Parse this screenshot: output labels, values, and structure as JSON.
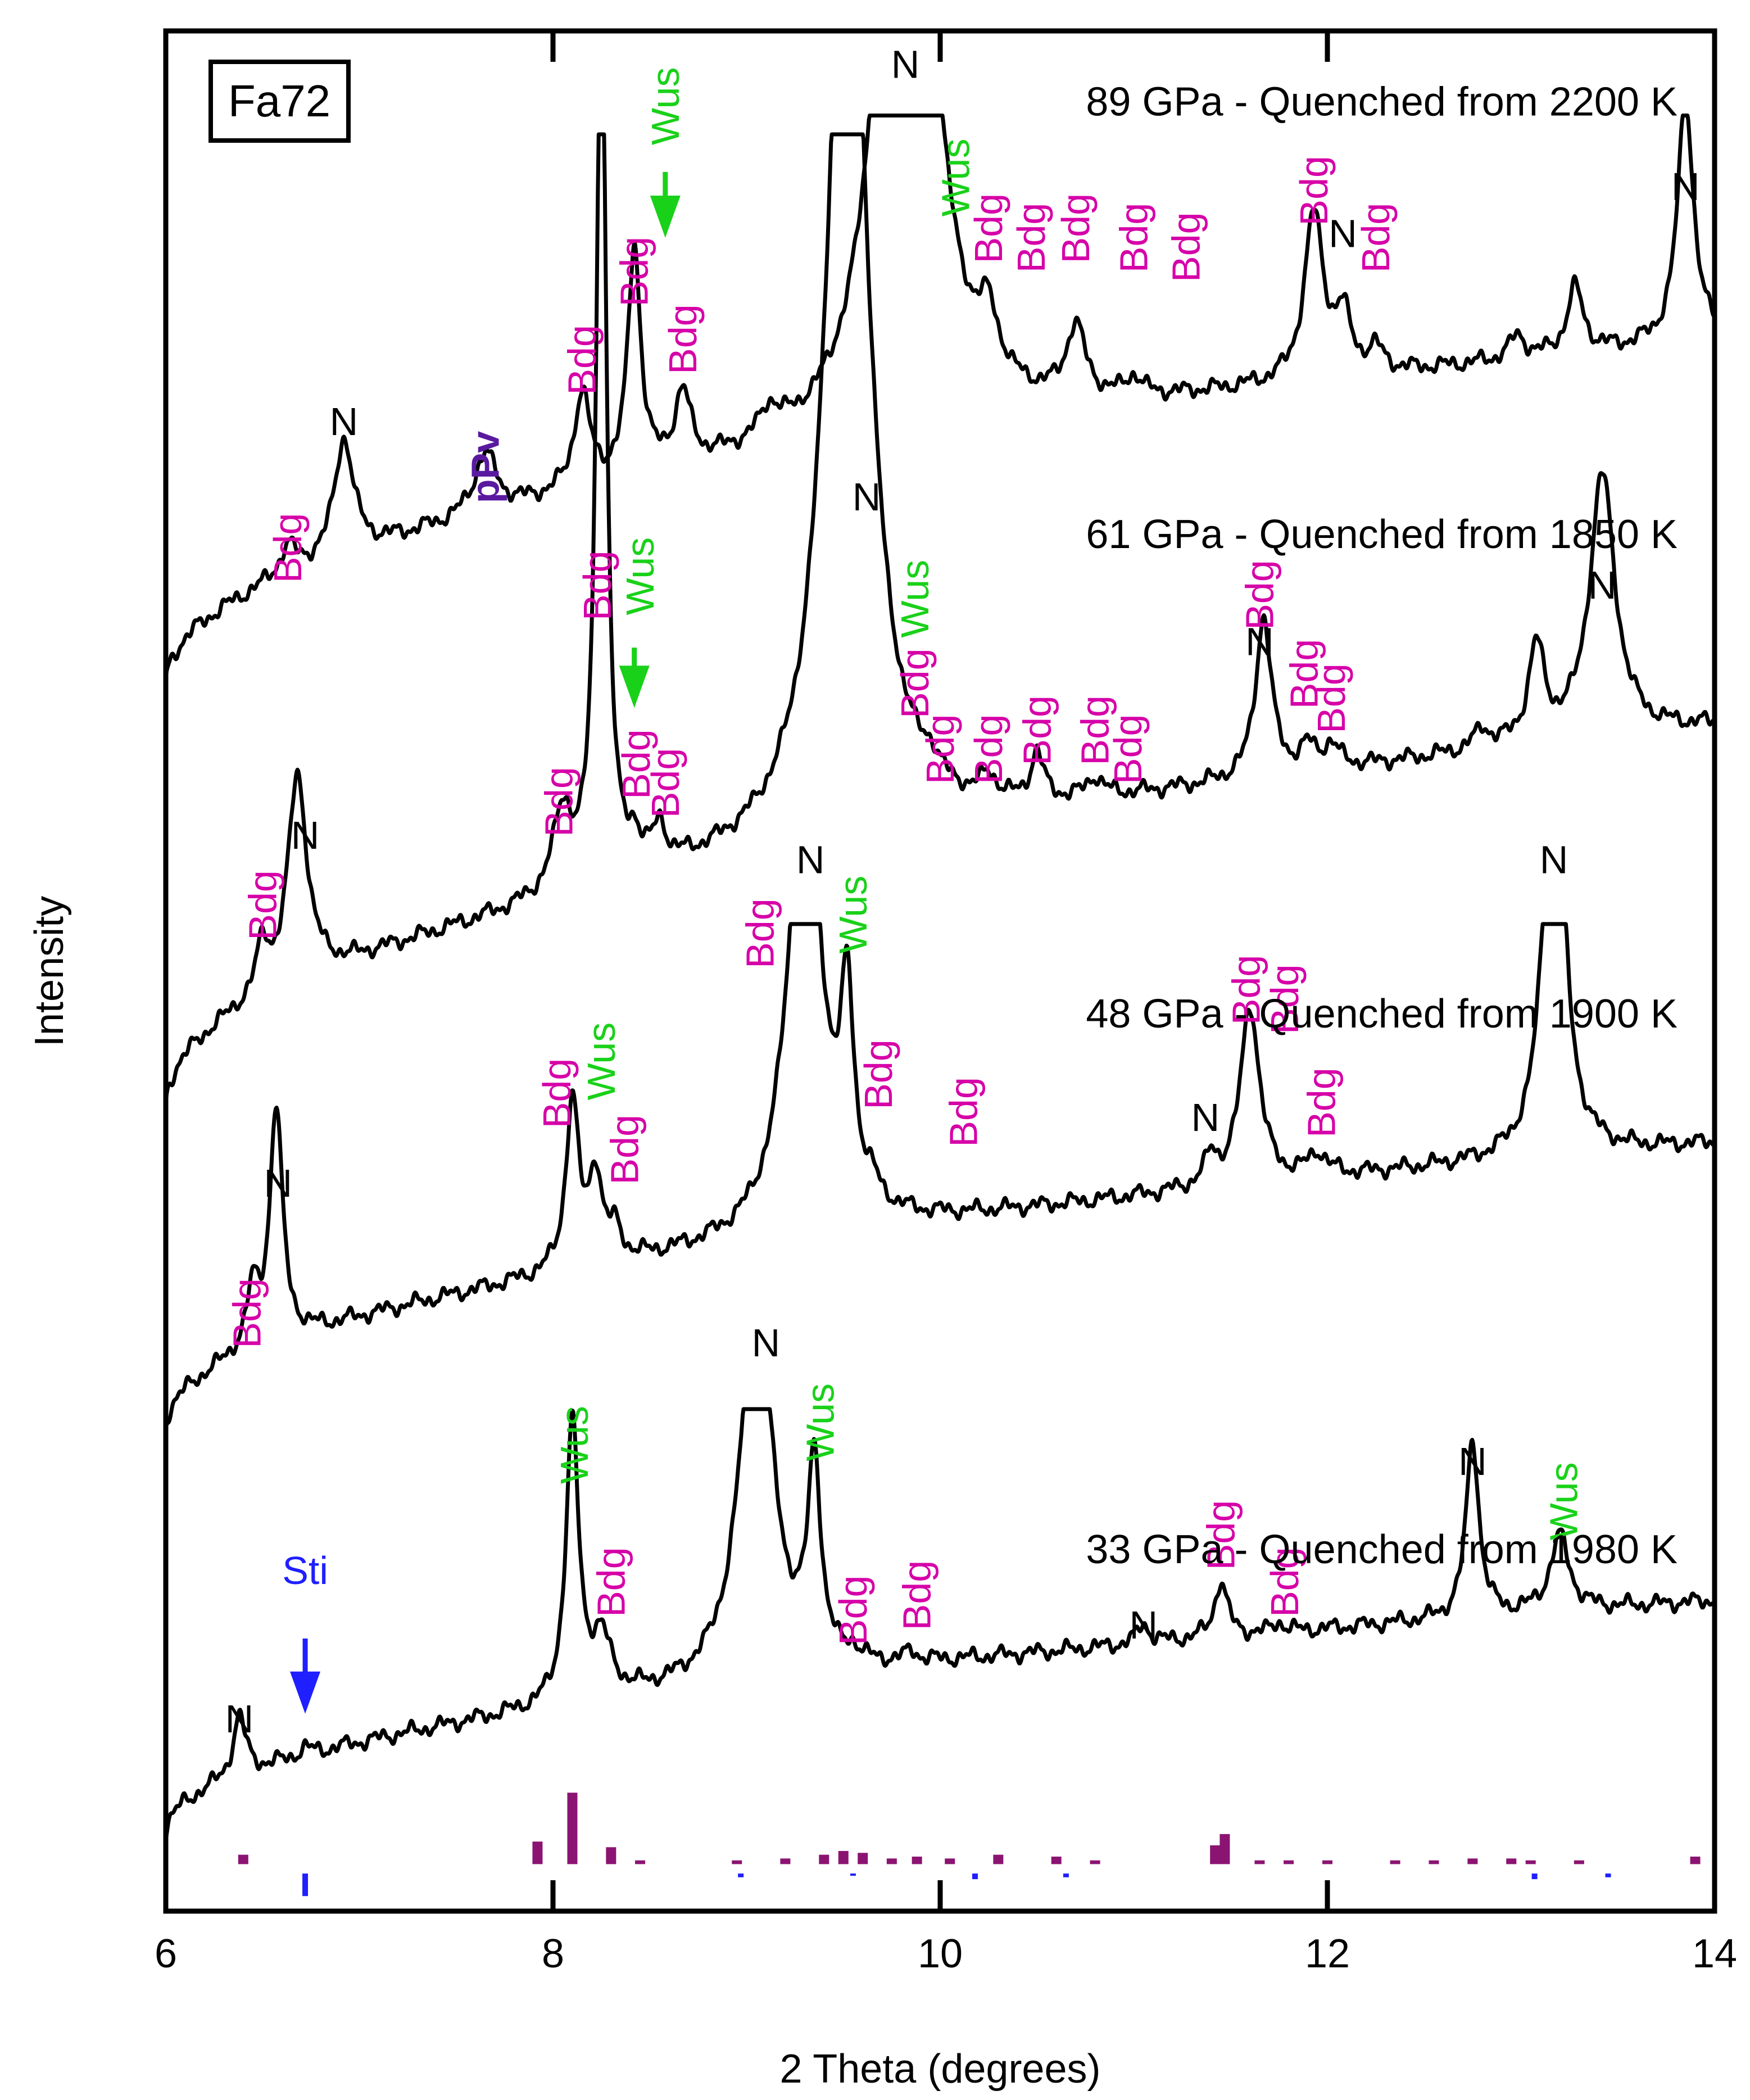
{
  "chart_data": {
    "type": "line",
    "sample_label": "Fa72",
    "xlabel": "2 Theta (degrees)",
    "ylabel": "Intensity",
    "xlim": [
      6,
      14
    ],
    "ylim": [
      0,
      10
    ],
    "xticks": [
      6,
      8,
      10,
      12,
      14
    ],
    "tick_labels": [
      "6",
      "8",
      "10",
      "12",
      "14"
    ],
    "colors": {
      "trace": "#000000",
      "Bdg": "#d600a8",
      "Wus": "#19d119",
      "Sti": "#1f1fff",
      "pPv": "#5a1aa0",
      "N": "#000000",
      "bdg_ref": "#8b1472",
      "sti_ref": "#1f1fff"
    },
    "series": [
      {
        "name": "89 GPa - Quenched from 2200 K",
        "label": "89 GPa - Quenched from 2200 K",
        "base_start": 6.5,
        "base_end": 8.35,
        "clip": 9.55,
        "peaks": [
          [
            6.63,
            0.15,
            0.05
          ],
          [
            6.92,
            0.62,
            0.06
          ],
          [
            7.65,
            0.32,
            0.07
          ],
          [
            8.15,
            0.5,
            0.05
          ],
          [
            8.42,
            1.22,
            0.04
          ],
          [
            8.67,
            0.38,
            0.05
          ],
          [
            9.12,
            0.15,
            0.06
          ],
          [
            9.82,
            6.0,
            0.12
          ],
          [
            10.25,
            0.3,
            0.06
          ],
          [
            10.7,
            0.38,
            0.06
          ],
          [
            11.0,
            0.1,
            0.05
          ],
          [
            11.93,
            0.88,
            0.06
          ],
          [
            12.08,
            0.3,
            0.05
          ],
          [
            12.25,
            0.12,
            0.05
          ],
          [
            12.98,
            0.12,
            0.05
          ],
          [
            13.28,
            0.35,
            0.05
          ],
          [
            13.85,
            1.3,
            0.05
          ]
        ],
        "annotations": [
          {
            "text": "Bdg",
            "x": 6.63,
            "y": 7.25,
            "phase": "Bdg",
            "rotate": true
          },
          {
            "text": "N",
            "x": 6.92,
            "y": 7.85,
            "phase": "N",
            "rotate": false
          },
          {
            "text": "pPv",
            "x": 7.65,
            "y": 7.68,
            "phase": "pPv",
            "rotate": true,
            "bold": true
          },
          {
            "text": "Bdg",
            "x": 8.15,
            "y": 8.25,
            "phase": "Bdg",
            "rotate": true
          },
          {
            "text": "Bdg",
            "x": 8.42,
            "y": 8.72,
            "phase": "Bdg",
            "rotate": true
          },
          {
            "text": "Wus",
            "x": 8.58,
            "y": 9.6,
            "phase": "Wus",
            "rotate": true
          },
          {
            "text": "Bdg",
            "x": 8.67,
            "y": 8.36,
            "phase": "Bdg",
            "rotate": true
          },
          {
            "text": "N",
            "x": 9.82,
            "y": 9.75,
            "phase": "N",
            "rotate": false
          },
          {
            "text": "Wus",
            "x": 10.08,
            "y": 9.22,
            "phase": "Wus",
            "rotate": true
          },
          {
            "text": "Bdg",
            "x": 10.25,
            "y": 8.95,
            "phase": "Bdg",
            "rotate": true
          },
          {
            "text": "Bdg",
            "x": 10.47,
            "y": 8.9,
            "phase": "Bdg",
            "rotate": true
          },
          {
            "text": "Bdg",
            "x": 10.7,
            "y": 8.95,
            "phase": "Bdg",
            "rotate": true
          },
          {
            "text": "Bdg",
            "x": 11.0,
            "y": 8.9,
            "phase": "Bdg",
            "rotate": true
          },
          {
            "text": "Bdg",
            "x": 11.27,
            "y": 8.85,
            "phase": "Bdg",
            "rotate": true
          },
          {
            "text": "Bdg",
            "x": 11.93,
            "y": 9.15,
            "phase": "Bdg",
            "rotate": true
          },
          {
            "text": "N",
            "x": 12.08,
            "y": 8.85,
            "phase": "N",
            "rotate": false
          },
          {
            "text": "Bdg",
            "x": 12.25,
            "y": 8.9,
            "phase": "Bdg",
            "rotate": true
          },
          {
            "text": "N",
            "x": 13.85,
            "y": 9.1,
            "phase": "N",
            "rotate": false
          }
        ],
        "arrows": [
          {
            "x": 8.58,
            "y_from": 9.25,
            "y_to": 8.9,
            "phase": "Wus"
          }
        ]
      },
      {
        "name": "61 GPa - Quenched from 1850 K",
        "label": "61 GPa - Quenched from 1850 K",
        "base_start": 4.25,
        "base_end": 6.3,
        "clip": 9.45,
        "peaks": [
          [
            6.5,
            0.25,
            0.04
          ],
          [
            6.68,
            1.1,
            0.06
          ],
          [
            8.05,
            0.42,
            0.06
          ],
          [
            8.25,
            5.0,
            0.03
          ],
          [
            8.42,
            0.15,
            0.04
          ],
          [
            8.55,
            0.2,
            0.04
          ],
          [
            9.52,
            5.6,
            0.12
          ],
          [
            9.95,
            0.1,
            0.05
          ],
          [
            10.25,
            0.12,
            0.05
          ],
          [
            10.5,
            0.25,
            0.04
          ],
          [
            10.8,
            0.1,
            0.05
          ],
          [
            11.67,
            0.85,
            0.05
          ],
          [
            11.9,
            0.12,
            0.05
          ],
          [
            12.02,
            0.12,
            0.05
          ],
          [
            12.8,
            0.1,
            0.05
          ],
          [
            13.08,
            0.5,
            0.05
          ],
          [
            13.42,
            1.4,
            0.08
          ]
        ],
        "annotations": [
          {
            "text": "Bdg",
            "x": 6.5,
            "y": 5.35,
            "phase": "Bdg",
            "rotate": true
          },
          {
            "text": "N",
            "x": 6.72,
            "y": 5.65,
            "phase": "N",
            "rotate": false
          },
          {
            "text": "Bdg",
            "x": 8.03,
            "y": 5.9,
            "phase": "Bdg",
            "rotate": true
          },
          {
            "text": "Bdg",
            "x": 8.23,
            "y": 7.05,
            "phase": "Bdg",
            "rotate": true
          },
          {
            "text": "Wus",
            "x": 8.45,
            "y": 7.1,
            "phase": "Wus",
            "rotate": true
          },
          {
            "text": "Bdg",
            "x": 8.43,
            "y": 6.1,
            "phase": "Bdg",
            "rotate": true
          },
          {
            "text": "Bdg",
            "x": 8.58,
            "y": 6.0,
            "phase": "Bdg",
            "rotate": true
          },
          {
            "text": "N",
            "x": 9.62,
            "y": 7.45,
            "phase": "N",
            "rotate": false
          },
          {
            "text": "Wus",
            "x": 9.87,
            "y": 6.98,
            "phase": "Wus",
            "rotate": true
          },
          {
            "text": "Bdg",
            "x": 9.87,
            "y": 6.53,
            "phase": "Bdg",
            "rotate": true
          },
          {
            "text": "Bdg",
            "x": 10.0,
            "y": 6.18,
            "phase": "Bdg",
            "rotate": true
          },
          {
            "text": "Bdg",
            "x": 10.25,
            "y": 6.18,
            "phase": "Bdg",
            "rotate": true
          },
          {
            "text": "Bdg",
            "x": 10.5,
            "y": 6.28,
            "phase": "Bdg",
            "rotate": true
          },
          {
            "text": "Bdg",
            "x": 10.8,
            "y": 6.28,
            "phase": "Bdg",
            "rotate": true
          },
          {
            "text": "Bdg",
            "x": 10.97,
            "y": 6.18,
            "phase": "Bdg",
            "rotate": true
          },
          {
            "text": "N",
            "x": 11.65,
            "y": 6.68,
            "phase": "N",
            "rotate": false
          },
          {
            "text": "Bdg",
            "x": 11.65,
            "y": 7.0,
            "phase": "Bdg",
            "rotate": true
          },
          {
            "text": "Bdg",
            "x": 11.88,
            "y": 6.58,
            "phase": "Bdg",
            "rotate": true
          },
          {
            "text": "Bdg",
            "x": 12.02,
            "y": 6.45,
            "phase": "Bdg",
            "rotate": true
          },
          {
            "text": "N",
            "x": 13.42,
            "y": 6.98,
            "phase": "N",
            "rotate": false
          }
        ],
        "arrows": [
          {
            "x": 8.42,
            "y_from": 6.72,
            "y_to": 6.4,
            "phase": "Wus"
          }
        ]
      },
      {
        "name": "48 GPa - Quenched from 1900 K",
        "label": "48 GPa - Quenched from 1900 K",
        "base_start": 2.55,
        "base_end": 4.08,
        "clip": 5.25,
        "peaks": [
          [
            6.45,
            0.3,
            0.04
          ],
          [
            6.57,
            1.25,
            0.04
          ],
          [
            8.1,
            0.9,
            0.04
          ],
          [
            8.22,
            0.48,
            0.04
          ],
          [
            8.32,
            0.15,
            0.04
          ],
          [
            9.3,
            2.6,
            0.1
          ],
          [
            9.52,
            1.05,
            0.04
          ],
          [
            9.65,
            0.08,
            0.04
          ],
          [
            11.4,
            0.15,
            0.04
          ],
          [
            11.6,
            0.95,
            0.06
          ],
          [
            11.95,
            0.12,
            0.06
          ],
          [
            13.17,
            2.5,
            0.06
          ]
        ],
        "annotations": [
          {
            "text": "Bdg",
            "x": 6.42,
            "y": 3.18,
            "phase": "Bdg",
            "rotate": true
          },
          {
            "text": "N",
            "x": 6.58,
            "y": 3.8,
            "phase": "N",
            "rotate": false
          },
          {
            "text": "Bdg",
            "x": 8.02,
            "y": 4.35,
            "phase": "Bdg",
            "rotate": true
          },
          {
            "text": "Wus",
            "x": 8.25,
            "y": 4.52,
            "phase": "Wus",
            "rotate": true
          },
          {
            "text": "Bdg",
            "x": 8.37,
            "y": 4.05,
            "phase": "Bdg",
            "rotate": true
          },
          {
            "text": "Bdg",
            "x": 9.07,
            "y": 5.2,
            "phase": "Bdg",
            "rotate": true
          },
          {
            "text": "N",
            "x": 9.33,
            "y": 5.52,
            "phase": "N",
            "rotate": false
          },
          {
            "text": "Wus",
            "x": 9.55,
            "y": 5.3,
            "phase": "Wus",
            "rotate": true
          },
          {
            "text": "Bdg",
            "x": 9.68,
            "y": 4.45,
            "phase": "Bdg",
            "rotate": true
          },
          {
            "text": "Bdg",
            "x": 10.12,
            "y": 4.25,
            "phase": "Bdg",
            "rotate": true
          },
          {
            "text": "N",
            "x": 11.37,
            "y": 4.15,
            "phase": "N",
            "rotate": false
          },
          {
            "text": "Bdg",
            "x": 11.58,
            "y": 4.9,
            "phase": "Bdg",
            "rotate": true
          },
          {
            "text": "Bdg",
            "x": 11.78,
            "y": 4.85,
            "phase": "Bdg",
            "rotate": true
          },
          {
            "text": "Bdg",
            "x": 11.97,
            "y": 4.3,
            "phase": "Bdg",
            "rotate": true
          },
          {
            "text": "N",
            "x": 13.17,
            "y": 5.52,
            "phase": "N",
            "rotate": false
          }
        ],
        "arrows": []
      },
      {
        "name": "33 GPa - Quenched from 1980 K",
        "label": "33 GPa - Quenched from 1980 K",
        "base_start": 0.4,
        "base_end": 1.65,
        "clip": 2.67,
        "peaks": [
          [
            6.38,
            0.32,
            0.04
          ],
          [
            6.72,
            0.04,
            0.04
          ],
          [
            8.1,
            1.48,
            0.04
          ],
          [
            8.25,
            0.3,
            0.06
          ],
          [
            9.05,
            2.1,
            0.1
          ],
          [
            9.35,
            1.05,
            0.04
          ],
          [
            9.55,
            0.06,
            0.04
          ],
          [
            9.85,
            0.05,
            0.04
          ],
          [
            11.05,
            0.1,
            0.04
          ],
          [
            11.45,
            0.3,
            0.04
          ],
          [
            11.75,
            0.05,
            0.04
          ],
          [
            12.75,
            0.95,
            0.04
          ],
          [
            13.2,
            0.4,
            0.06
          ]
        ],
        "annotations": [
          {
            "text": "N",
            "x": 6.38,
            "y": 0.95,
            "phase": "N",
            "rotate": false
          },
          {
            "text": "Sti",
            "x": 6.72,
            "y": 1.74,
            "phase": "Sti",
            "rotate": false
          },
          {
            "text": "Wus",
            "x": 8.11,
            "y": 2.48,
            "phase": "Wus",
            "rotate": true
          },
          {
            "text": "Bdg",
            "x": 8.3,
            "y": 1.75,
            "phase": "Bdg",
            "rotate": true
          },
          {
            "text": "N",
            "x": 9.1,
            "y": 2.95,
            "phase": "N",
            "rotate": false
          },
          {
            "text": "Wus",
            "x": 9.38,
            "y": 2.6,
            "phase": "Wus",
            "rotate": true
          },
          {
            "text": "Bdg",
            "x": 9.55,
            "y": 1.6,
            "phase": "Bdg",
            "rotate": true
          },
          {
            "text": "Bdg",
            "x": 9.88,
            "y": 1.68,
            "phase": "Bdg",
            "rotate": true
          },
          {
            "text": "N",
            "x": 11.05,
            "y": 1.45,
            "phase": "N",
            "rotate": false
          },
          {
            "text": "Bdg",
            "x": 11.45,
            "y": 2.0,
            "phase": "Bdg",
            "rotate": true
          },
          {
            "text": "Bdg",
            "x": 11.78,
            "y": 1.75,
            "phase": "Bdg",
            "rotate": true
          },
          {
            "text": "N",
            "x": 12.75,
            "y": 2.32,
            "phase": "N",
            "rotate": false
          },
          {
            "text": "Wus",
            "x": 13.22,
            "y": 2.18,
            "phase": "Wus",
            "rotate": true
          }
        ],
        "arrows": [
          {
            "x": 6.72,
            "y_from": 1.45,
            "y_to": 1.05,
            "phase": "Sti"
          }
        ]
      }
    ],
    "label_y": [
      9.55,
      7.25,
      4.7,
      1.85
    ],
    "reference_ticks": {
      "Bdg": {
        "baseline": 0.25,
        "bars": [
          [
            6.4,
            0.05
          ],
          [
            7.92,
            0.12
          ],
          [
            8.1,
            0.38
          ],
          [
            8.3,
            0.09
          ],
          [
            8.45,
            0.02
          ],
          [
            8.95,
            0.02
          ],
          [
            9.2,
            0.03
          ],
          [
            9.4,
            0.05
          ],
          [
            9.5,
            0.07
          ],
          [
            9.6,
            0.06
          ],
          [
            9.75,
            0.03
          ],
          [
            9.88,
            0.04
          ],
          [
            10.05,
            0.03
          ],
          [
            10.3,
            0.05
          ],
          [
            10.6,
            0.04
          ],
          [
            10.8,
            0.02
          ],
          [
            11.42,
            0.1
          ],
          [
            11.47,
            0.16
          ],
          [
            11.65,
            0.02
          ],
          [
            11.8,
            0.02
          ],
          [
            12.0,
            0.02
          ],
          [
            12.35,
            0.02
          ],
          [
            12.55,
            0.02
          ],
          [
            12.75,
            0.03
          ],
          [
            12.95,
            0.03
          ],
          [
            13.05,
            0.02
          ],
          [
            13.3,
            0.02
          ],
          [
            13.9,
            0.04
          ]
        ]
      },
      "Sti": {
        "baseline": 0.2,
        "bars": [
          [
            6.72,
            -0.12
          ],
          [
            8.97,
            -0.02
          ],
          [
            9.55,
            -0.01
          ],
          [
            10.18,
            -0.03
          ],
          [
            10.65,
            -0.02
          ],
          [
            13.07,
            -0.03
          ],
          [
            13.45,
            -0.02
          ]
        ]
      }
    }
  }
}
